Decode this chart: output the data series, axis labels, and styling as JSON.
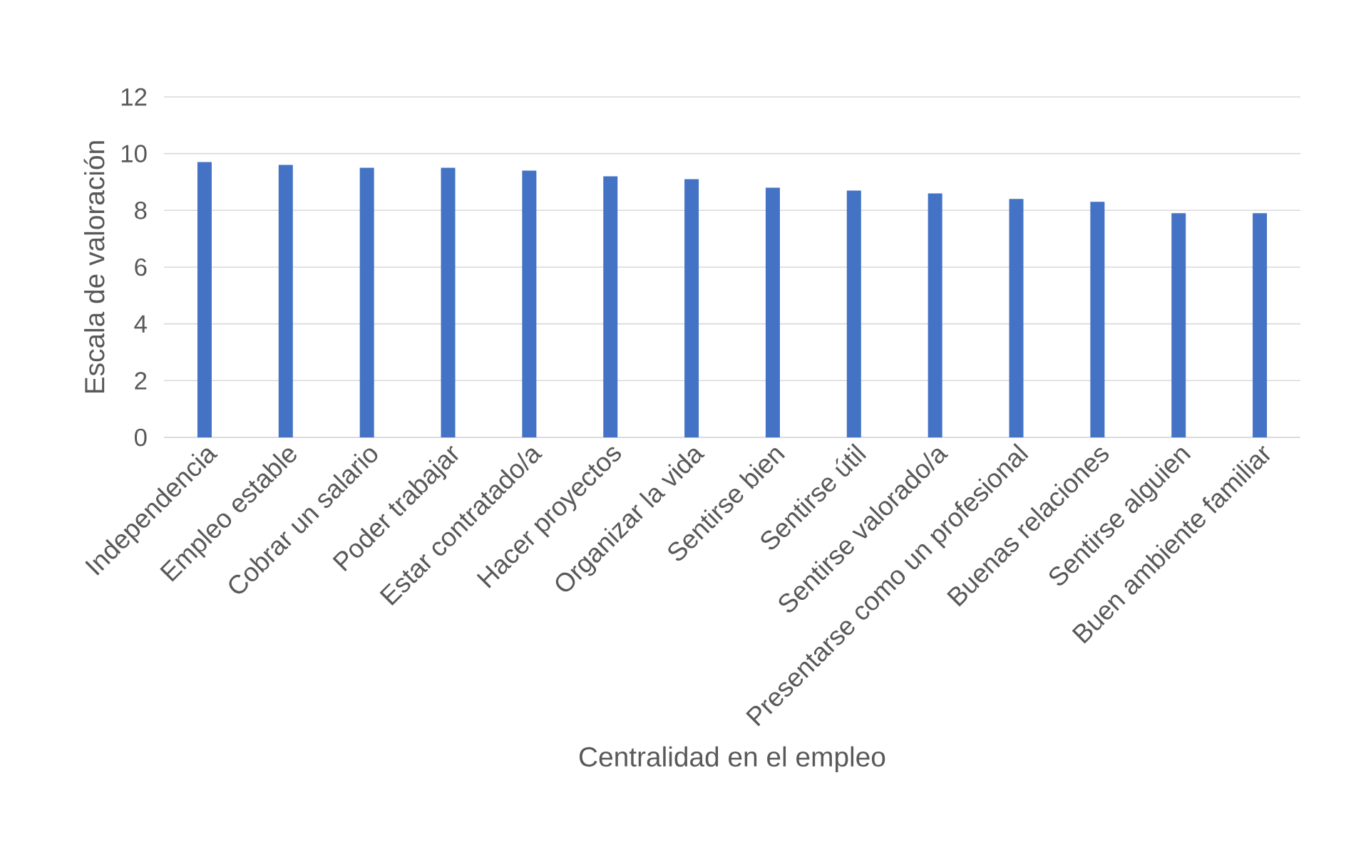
{
  "chart_data": {
    "type": "bar",
    "xlabel": "Centralidad en el empleo",
    "ylabel": "Escala de valoración",
    "categories": [
      "Independencia",
      "Empleo estable",
      "Cobrar un salario",
      "Poder trabajar",
      "Estar contratado/a",
      "Hacer proyectos",
      "Organizar la vida",
      "Sentirse bien",
      "Sentirse útil",
      "Sentirse valorado/a",
      "Presentarse como un profesional",
      "Buenas relaciones",
      "Sentirse alguien",
      "Buen ambiente familiar"
    ],
    "values": [
      9.7,
      9.6,
      9.5,
      9.5,
      9.4,
      9.2,
      9.1,
      8.8,
      8.7,
      8.6,
      8.4,
      8.3,
      7.9,
      7.9
    ],
    "color": "#4472c4",
    "ylim": [
      0,
      12
    ],
    "yticks": [
      0,
      2,
      4,
      6,
      8,
      10,
      12
    ],
    "grid": "y"
  }
}
